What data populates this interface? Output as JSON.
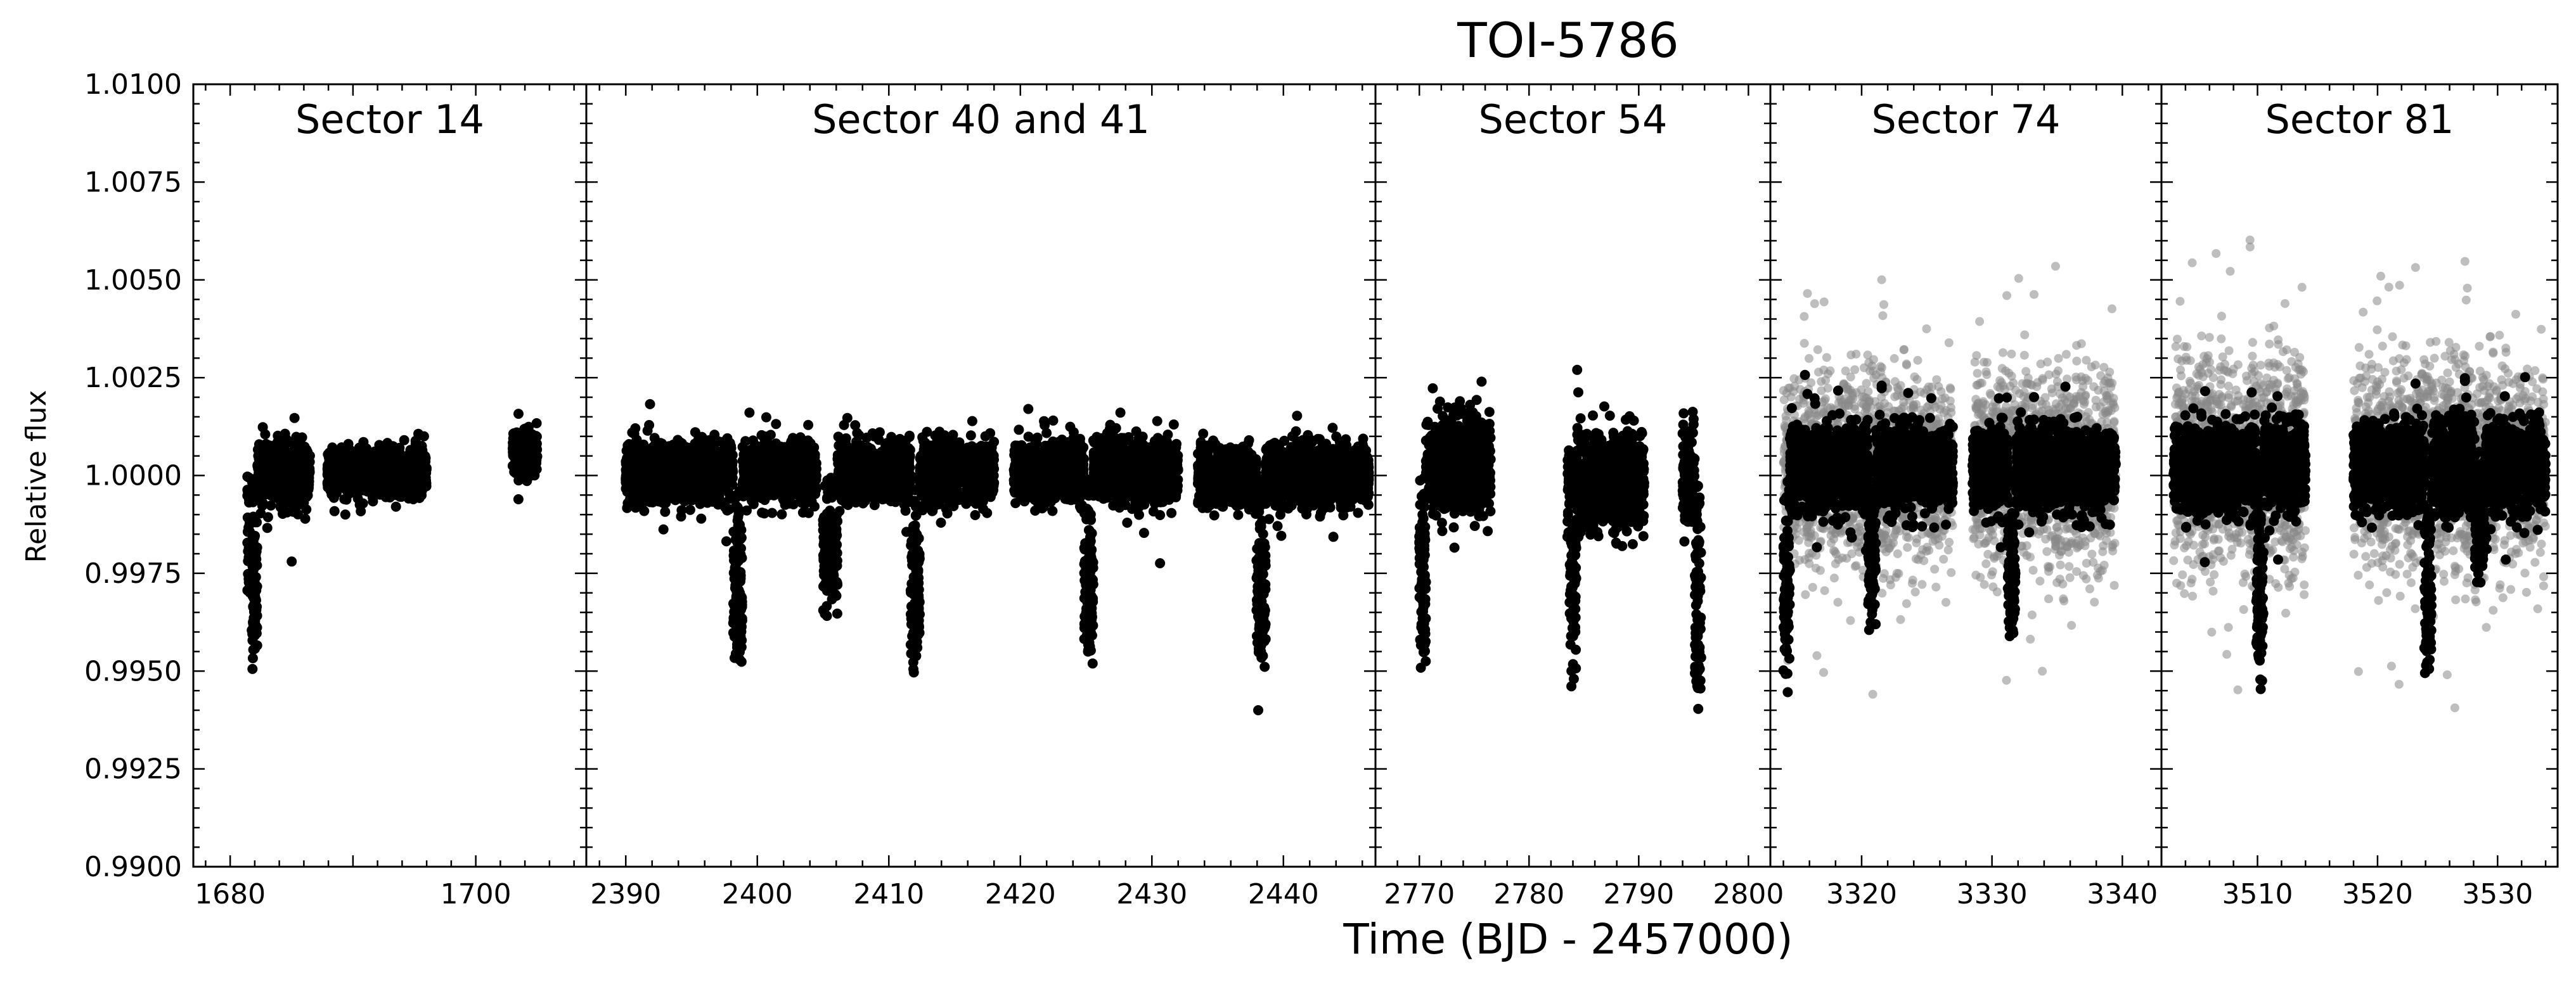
{
  "title": "TOI-5786",
  "xlabel": "Time (BJD - 2457000)",
  "ylabel": "Relative flux",
  "colors": {
    "binned": "#000000",
    "raw": "#888888",
    "frame": "#000000"
  },
  "chart_data": {
    "type": "scatter",
    "title": "TOI-5786",
    "xlabel": "Time (BJD - 2457000)",
    "ylabel": "Relative flux",
    "ylim": [
      0.99,
      1.01
    ],
    "yticks": [
      "0.9900",
      "0.9925",
      "0.9950",
      "0.9975",
      "1.0000",
      "1.0025",
      "1.0050",
      "1.0075",
      "1.0100"
    ],
    "grid": false,
    "panels": [
      {
        "label": "Sector 14",
        "xlim": [
          1677,
          1709
        ],
        "xticks": [
          1680,
          1700
        ],
        "black": {
          "segments": [
            {
              "x0": 1681.8,
              "x1": 1686.5,
              "mean": 1.0001,
              "spread": 0.0008
            },
            {
              "x0": 1687.9,
              "x1": 1696.0,
              "mean": 1.0001,
              "spread": 0.0006
            },
            {
              "x0": 1703.0,
              "x1": 1705.0,
              "mean": 1.0006,
              "spread": 0.0006
            }
          ],
          "dips": [
            {
              "x": 1681.9,
              "depth": 0.0045,
              "width": 0.3
            },
            {
              "x": 1681.5,
              "depth": 0.003,
              "width": 0.2
            }
          ]
        }
      },
      {
        "label": "Sector 40 and 41",
        "xlim": [
          2387,
          2447
        ],
        "xticks": [
          2390,
          2400,
          2410,
          2420,
          2430,
          2440
        ],
        "black": {
          "segments": [
            {
              "x0": 2390.0,
              "x1": 2404.5,
              "mean": 1.0001,
              "spread": 0.0008
            },
            {
              "x0": 2405.0,
              "x1": 2418.0,
              "mean": 1.0001,
              "spread": 0.0008
            },
            {
              "x0": 2419.5,
              "x1": 2432.0,
              "mean": 1.0001,
              "spread": 0.0008
            },
            {
              "x0": 2433.5,
              "x1": 2446.5,
              "mean": 1.0,
              "spread": 0.0008
            }
          ],
          "dips": [
            {
              "x": 2398.5,
              "depth": 0.0045,
              "width": 0.35
            },
            {
              "x": 2412.0,
              "depth": 0.0045,
              "width": 0.35
            },
            {
              "x": 2425.2,
              "depth": 0.0045,
              "width": 0.35
            },
            {
              "x": 2438.3,
              "depth": 0.0045,
              "width": 0.35
            },
            {
              "x": 2405.5,
              "depth": 0.003,
              "width": 0.6
            }
          ]
        }
      },
      {
        "label": "Sector 54",
        "xlim": [
          2766,
          2802
        ],
        "xticks": [
          2770,
          2780,
          2790,
          2800
        ],
        "black": {
          "segments": [
            {
              "x0": 2770.0,
              "x1": 2776.5,
              "mean": 1.0003,
              "spread": 0.0013
            },
            {
              "x0": 2783.5,
              "x1": 2790.5,
              "mean": 0.9999,
              "spread": 0.0013
            },
            {
              "x0": 2794.0,
              "x1": 2795.7,
              "mean": 1.0001,
              "spread": 0.0014
            }
          ],
          "dips": [
            {
              "x": 2770.3,
              "depth": 0.0045,
              "width": 0.3
            },
            {
              "x": 2784.0,
              "depth": 0.004,
              "width": 0.3
            },
            {
              "x": 2795.4,
              "depth": 0.0055,
              "width": 0.3
            }
          ]
        }
      },
      {
        "label": "Sector 74",
        "xlim": [
          3313,
          3343
        ],
        "xticks": [
          3320,
          3330,
          3340
        ],
        "gray": {
          "segments": [
            {
              "x0": 3314.0,
              "x1": 3327.0,
              "mean": 1.0002,
              "spread": 0.0026
            },
            {
              "x0": 3328.5,
              "x1": 3339.5,
              "mean": 1.0002,
              "spread": 0.0027
            }
          ]
        },
        "black": {
          "segments": [
            {
              "x0": 3314.0,
              "x1": 3327.0,
              "mean": 1.0002,
              "spread": 0.0011
            },
            {
              "x0": 3328.5,
              "x1": 3339.5,
              "mean": 1.0002,
              "spread": 0.0011
            }
          ],
          "dips": [
            {
              "x": 3314.2,
              "depth": 0.0045,
              "width": 0.3
            },
            {
              "x": 3320.8,
              "depth": 0.0035,
              "width": 0.3
            },
            {
              "x": 3331.5,
              "depth": 0.004,
              "width": 0.3
            }
          ]
        }
      },
      {
        "label": "Sector 81",
        "xlim": [
          3502,
          3535
        ],
        "xticks": [
          3510,
          3520,
          3530
        ],
        "gray": {
          "segments": [
            {
              "x0": 3503.0,
              "x1": 3514.0,
              "mean": 1.0003,
              "spread": 0.003
            },
            {
              "x0": 3518.0,
              "x1": 3534.0,
              "mean": 1.0003,
              "spread": 0.0028
            }
          ]
        },
        "black": {
          "segments": [
            {
              "x0": 3503.0,
              "x1": 3514.0,
              "mean": 1.0002,
              "spread": 0.0012
            },
            {
              "x0": 3518.0,
              "x1": 3534.0,
              "mean": 1.0002,
              "spread": 0.0012
            }
          ],
          "dips": [
            {
              "x": 3510.2,
              "depth": 0.005,
              "width": 0.3
            },
            {
              "x": 3524.2,
              "depth": 0.005,
              "width": 0.3
            },
            {
              "x": 3528.5,
              "depth": 0.002,
              "width": 0.4
            }
          ]
        }
      }
    ]
  }
}
